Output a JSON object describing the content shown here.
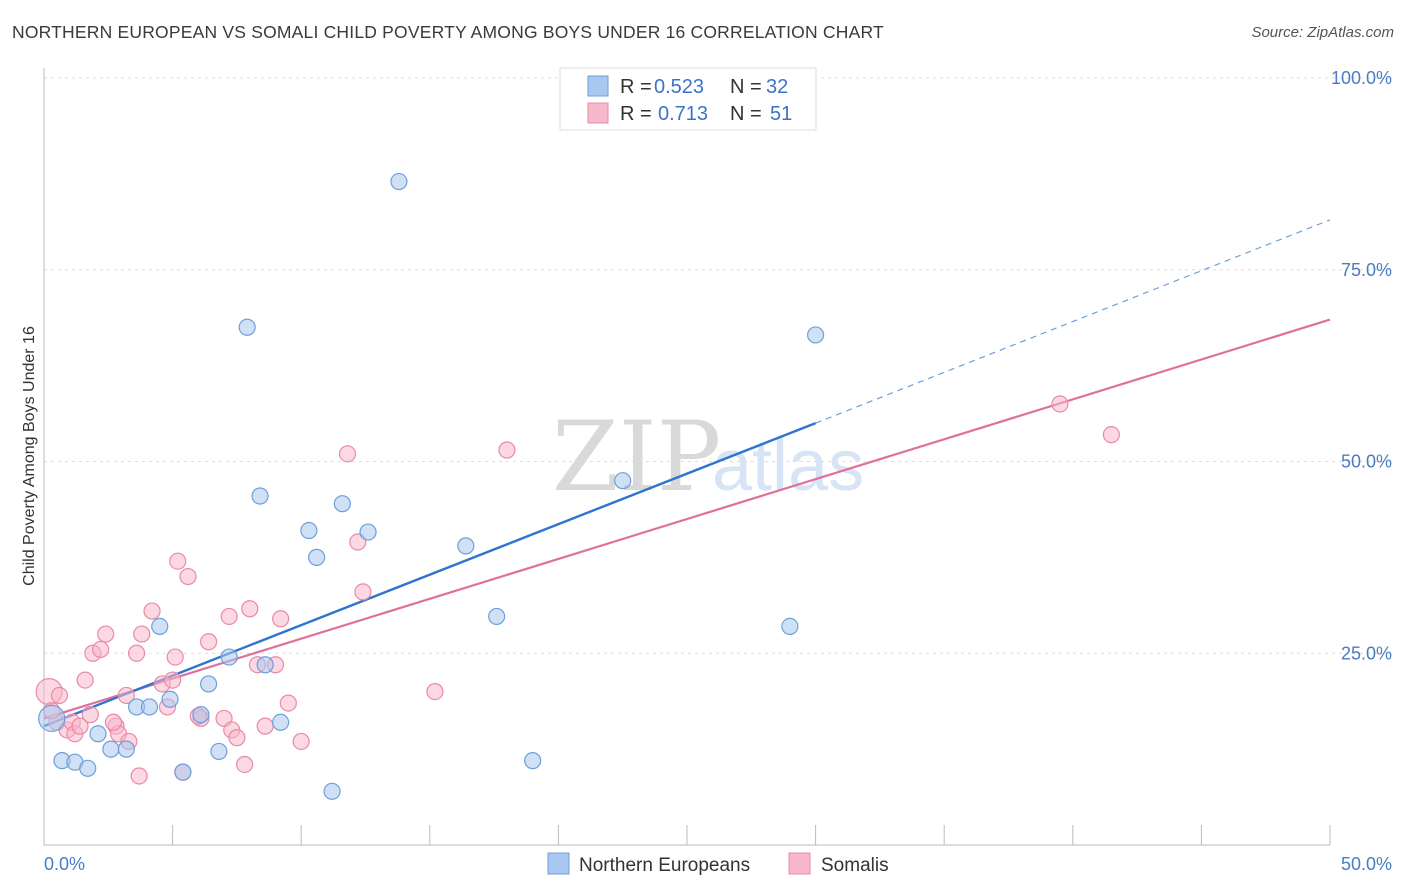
{
  "header": {
    "title": "NORTHERN EUROPEAN VS SOMALI CHILD POVERTY AMONG BOYS UNDER 16 CORRELATION CHART",
    "source": "Source: ZipAtlas.com"
  },
  "watermark": {
    "zip": "ZIP",
    "atlas": "atlas"
  },
  "colors": {
    "blue_fill": "#a9c8ef",
    "blue_stroke": "#6d9fdc",
    "blue_line": "#2f74cf",
    "pink_fill": "#f7b8cb",
    "pink_stroke": "#e98aa8",
    "pink_line": "#e0709a",
    "tick_text": "#4a7cc4",
    "grid": "#dddddd"
  },
  "legend": {
    "rows": [
      {
        "r_label": "R =",
        "r_value": "0.523",
        "n_label": "N =",
        "n_value": "32"
      },
      {
        "r_label": "R =",
        "r_value": "0.713",
        "n_label": "N =",
        "n_value": "51"
      }
    ]
  },
  "bottom_legend": {
    "items": [
      "Northern Europeans",
      "Somalis"
    ]
  },
  "chart_data": {
    "type": "scatter",
    "title": "NORTHERN EUROPEAN VS SOMALI CHILD POVERTY AMONG BOYS UNDER 16 CORRELATION CHART",
    "xlabel": "",
    "ylabel": "Child Poverty Among Boys Under 16",
    "xlim": [
      0,
      50
    ],
    "ylim": [
      0,
      100
    ],
    "x_tick_labels": [
      "0.0%",
      "50.0%"
    ],
    "y_tick_values": [
      25,
      50,
      75,
      100
    ],
    "y_tick_labels": [
      "25.0%",
      "50.0%",
      "75.0%",
      "100.0%"
    ],
    "grid": "horizontal dashed",
    "series": [
      {
        "name": "Northern Europeans",
        "color": "#a9c8ef",
        "r": "0.523",
        "n": "32",
        "trend": {
          "x": [
            0,
            30
          ],
          "y": [
            15.5,
            55.0
          ],
          "dashed_to": {
            "x": 50,
            "y": 81.5
          }
        },
        "points": [
          [
            0.3,
            16.5
          ],
          [
            0.7,
            11.0
          ],
          [
            1.2,
            10.8
          ],
          [
            1.7,
            10.0
          ],
          [
            2.1,
            14.5
          ],
          [
            2.6,
            12.5
          ],
          [
            3.2,
            12.5
          ],
          [
            3.6,
            18.0
          ],
          [
            4.1,
            18.0
          ],
          [
            4.5,
            28.5
          ],
          [
            4.9,
            19.0
          ],
          [
            5.4,
            9.5
          ],
          [
            6.1,
            17.0
          ],
          [
            6.4,
            21.0
          ],
          [
            6.8,
            12.2
          ],
          [
            7.2,
            24.5
          ],
          [
            7.9,
            67.5
          ],
          [
            8.4,
            45.5
          ],
          [
            8.6,
            23.5
          ],
          [
            9.2,
            16.0
          ],
          [
            10.3,
            41.0
          ],
          [
            10.6,
            37.5
          ],
          [
            11.2,
            7.0
          ],
          [
            11.6,
            44.5
          ],
          [
            12.6,
            40.8
          ],
          [
            13.8,
            86.5
          ],
          [
            16.4,
            39.0
          ],
          [
            17.6,
            29.8
          ],
          [
            19.0,
            11.0
          ],
          [
            22.5,
            47.5
          ],
          [
            29.0,
            28.5
          ],
          [
            30.0,
            66.5
          ]
        ]
      },
      {
        "name": "Somalis",
        "color": "#f7b8cb",
        "r": "0.713",
        "n": "51",
        "trend": {
          "x": [
            0,
            50
          ],
          "y": [
            16.5,
            68.5
          ]
        },
        "points": [
          [
            0.2,
            20.0
          ],
          [
            0.5,
            16.0
          ],
          [
            0.6,
            19.5
          ],
          [
            0.9,
            15.0
          ],
          [
            1.1,
            16.0
          ],
          [
            1.2,
            14.5
          ],
          [
            1.4,
            15.5
          ],
          [
            1.6,
            21.5
          ],
          [
            1.8,
            17.0
          ],
          [
            1.9,
            25.0
          ],
          [
            2.2,
            25.5
          ],
          [
            2.4,
            27.5
          ],
          [
            2.8,
            15.5
          ],
          [
            2.9,
            14.5
          ],
          [
            3.2,
            19.5
          ],
          [
            3.3,
            13.5
          ],
          [
            3.6,
            25.0
          ],
          [
            3.7,
            9.0
          ],
          [
            3.8,
            27.5
          ],
          [
            4.2,
            30.5
          ],
          [
            4.6,
            21.0
          ],
          [
            4.8,
            18.0
          ],
          [
            5.0,
            21.5
          ],
          [
            5.1,
            24.5
          ],
          [
            5.2,
            37.0
          ],
          [
            5.4,
            9.5
          ],
          [
            5.6,
            35.0
          ],
          [
            6.1,
            16.5
          ],
          [
            6.4,
            26.5
          ],
          [
            7.0,
            16.5
          ],
          [
            7.2,
            29.8
          ],
          [
            7.3,
            15.0
          ],
          [
            7.5,
            14.0
          ],
          [
            7.8,
            10.5
          ],
          [
            8.0,
            30.8
          ],
          [
            8.3,
            23.5
          ],
          [
            8.6,
            15.5
          ],
          [
            9.0,
            23.5
          ],
          [
            9.2,
            29.5
          ],
          [
            9.5,
            18.5
          ],
          [
            10.0,
            13.5
          ],
          [
            11.8,
            51.0
          ],
          [
            12.2,
            39.5
          ],
          [
            12.4,
            33.0
          ],
          [
            15.2,
            20.0
          ],
          [
            18.0,
            51.5
          ],
          [
            39.5,
            57.5
          ],
          [
            41.5,
            53.5
          ],
          [
            0.3,
            17.5
          ],
          [
            2.7,
            16.0
          ],
          [
            6.0,
            16.8
          ]
        ]
      }
    ]
  }
}
